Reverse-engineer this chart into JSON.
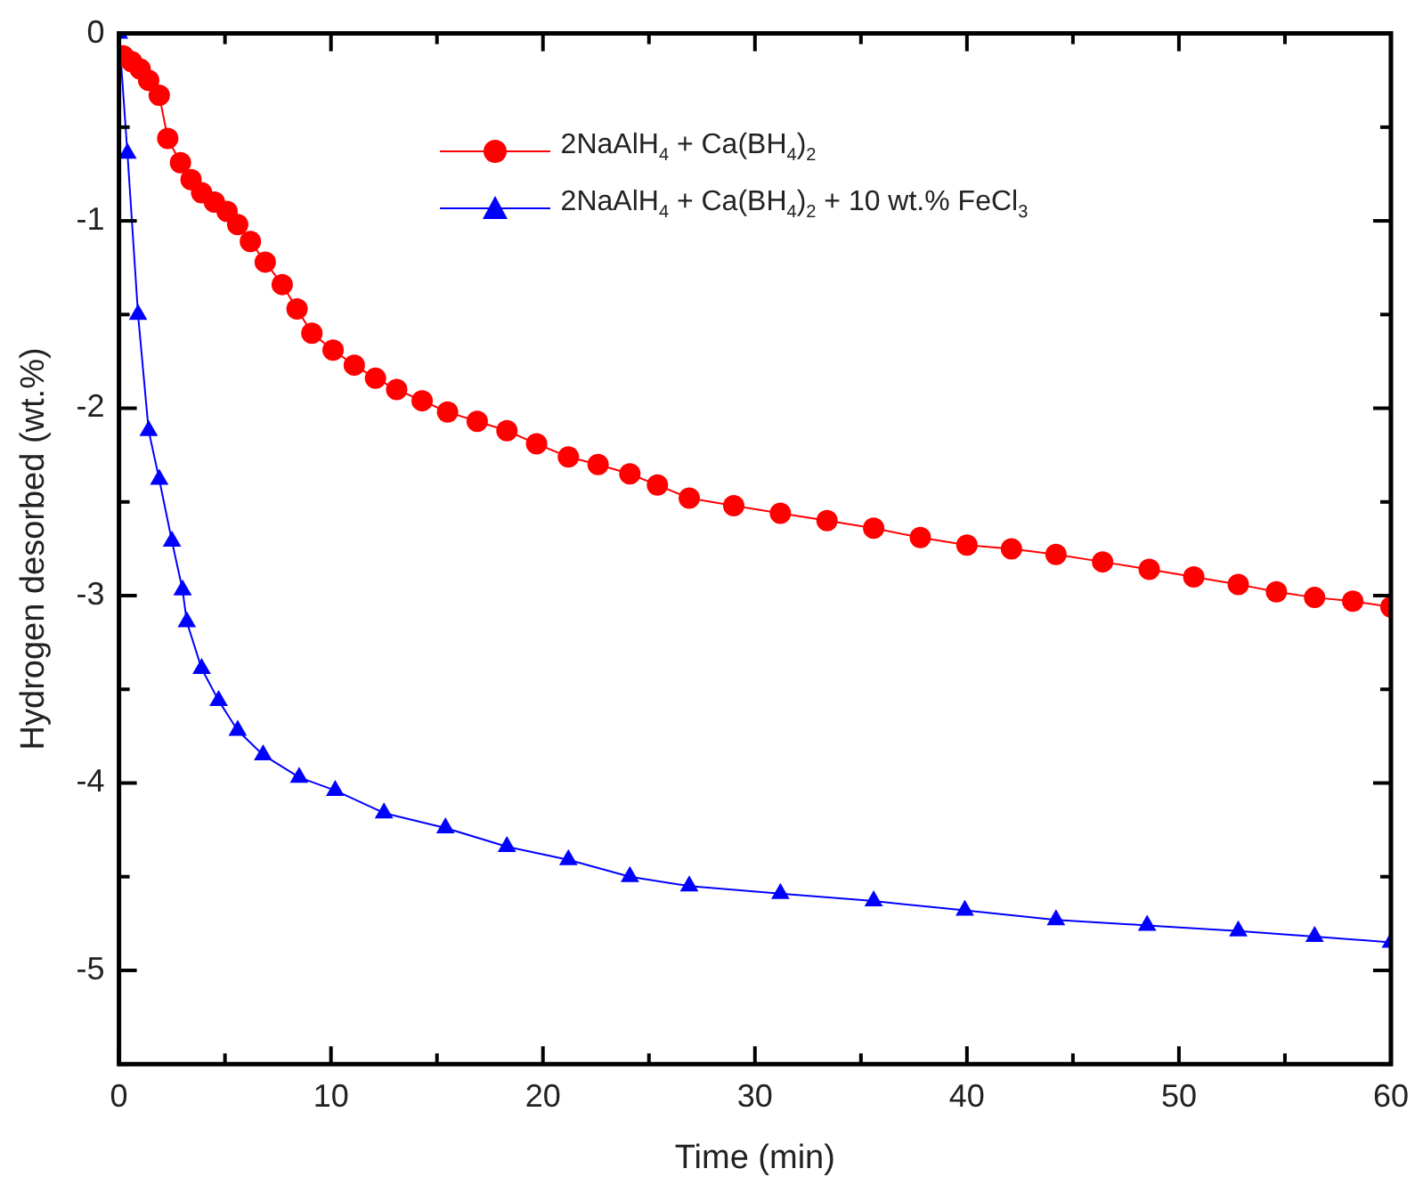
{
  "chart_data": {
    "type": "line",
    "xlabel": "Time (min)",
    "ylabel": "Hydrogen desorbed (wt.%)",
    "xlim": [
      0,
      60
    ],
    "xticks": [
      0,
      10,
      20,
      30,
      40,
      50,
      60
    ],
    "ylim": [
      -5.5,
      0
    ],
    "yticks": [
      {
        "value": -5.5,
        "label": null
      },
      -5,
      {
        "value": -4.5,
        "label": null
      },
      -4,
      {
        "value": -3.5,
        "label": null
      },
      -3,
      {
        "value": -2.5,
        "label": null
      },
      -2,
      {
        "value": -1.5,
        "label": null
      },
      -1,
      {
        "value": -0.5,
        "label": null
      },
      0
    ],
    "grid": false,
    "legend": "top right",
    "line_style": "solid",
    "series": [
      {
        "name": "2NaAlH$_{4}$ + Ca(BH$_{4}$)$_{2}$",
        "color": "#ff0000",
        "marker": "circle",
        "x": [
          0.2,
          0.6,
          1.0,
          1.4,
          1.9,
          2.3,
          2.9,
          3.4,
          3.9,
          4.5,
          5.1,
          5.6,
          6.2,
          6.9,
          7.7,
          8.4,
          9.1,
          10.1,
          11.1,
          12.1,
          13.1,
          14.3,
          15.5,
          16.9,
          18.3,
          19.7,
          21.2,
          22.6,
          24.1,
          25.4,
          26.9,
          29.0,
          31.2,
          33.4,
          35.6,
          37.8,
          40.0,
          42.1,
          44.2,
          46.4,
          48.6,
          50.7,
          52.8,
          54.6,
          56.4,
          58.2,
          60
        ],
        "values": [
          -0.12,
          -0.15,
          -0.19,
          -0.25,
          -0.33,
          -0.56,
          -0.69,
          -0.78,
          -0.85,
          -0.9,
          -0.95,
          -1.02,
          -1.11,
          -1.22,
          -1.34,
          -1.47,
          -1.6,
          -1.69,
          -1.77,
          -1.84,
          -1.9,
          -1.96,
          -2.02,
          -2.07,
          -2.12,
          -2.19,
          -2.26,
          -2.3,
          -2.35,
          -2.41,
          -2.48,
          -2.52,
          -2.56,
          -2.6,
          -2.64,
          -2.69,
          -2.73,
          -2.75,
          -2.78,
          -2.82,
          -2.86,
          -2.9,
          -2.94,
          -2.98,
          -3.01,
          -3.03,
          -3.06
        ]
      },
      {
        "name": "2NaAlH$_{4}$ + Ca(BH$_{4}$)$_{2}$ + 10 wt.% FeCl$_{3}$",
        "color": "#0000ff",
        "marker": "triangle",
        "x": [
          0,
          0.4,
          0.9,
          1.4,
          1.9,
          2.5,
          3.0,
          3.2,
          3.9,
          4.7,
          5.6,
          6.8,
          8.5,
          10.2,
          12.5,
          15.4,
          18.3,
          21.2,
          24.1,
          26.9,
          31.2,
          35.6,
          39.9,
          44.2,
          48.5,
          52.8,
          56.4,
          60
        ],
        "values": [
          0,
          -0.64,
          -1.5,
          -2.12,
          -2.38,
          -2.71,
          -2.97,
          -3.14,
          -3.39,
          -3.56,
          -3.72,
          -3.85,
          -3.97,
          -4.04,
          -4.16,
          -4.24,
          -4.34,
          -4.41,
          -4.5,
          -4.55,
          -4.59,
          -4.63,
          -4.68,
          -4.73,
          -4.76,
          -4.79,
          -4.82,
          -4.85
        ]
      }
    ]
  }
}
